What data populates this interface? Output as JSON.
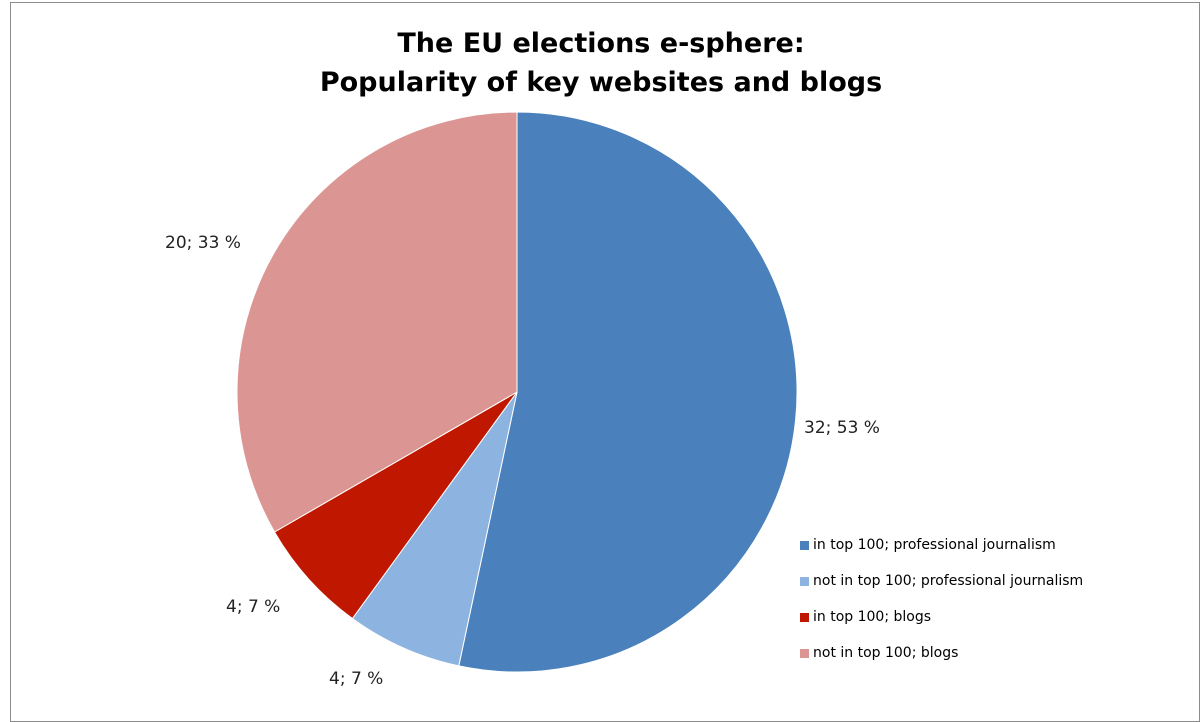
{
  "chart_data": {
    "type": "pie",
    "title": "The EU elections e-sphere:",
    "subtitle": "Popularity of key websites and blogs",
    "slices": [
      {
        "name": "in top 100; professional journalism",
        "value": 32,
        "percent": 53,
        "label": "32; 53 %",
        "color": "#4a80bb"
      },
      {
        "name": "not in top 100; professional journalism",
        "value": 4,
        "percent": 7,
        "label": "4; 7 %",
        "color": "#8db3e0"
      },
      {
        "name": "in top 100; blogs",
        "value": 4,
        "percent": 7,
        "label": "4; 7 %",
        "color": "#c01800"
      },
      {
        "name": "not in top 100; blogs",
        "value": 20,
        "percent": 33,
        "label": "20; 33 %",
        "color": "#db9593"
      }
    ],
    "legend_position": "right"
  }
}
